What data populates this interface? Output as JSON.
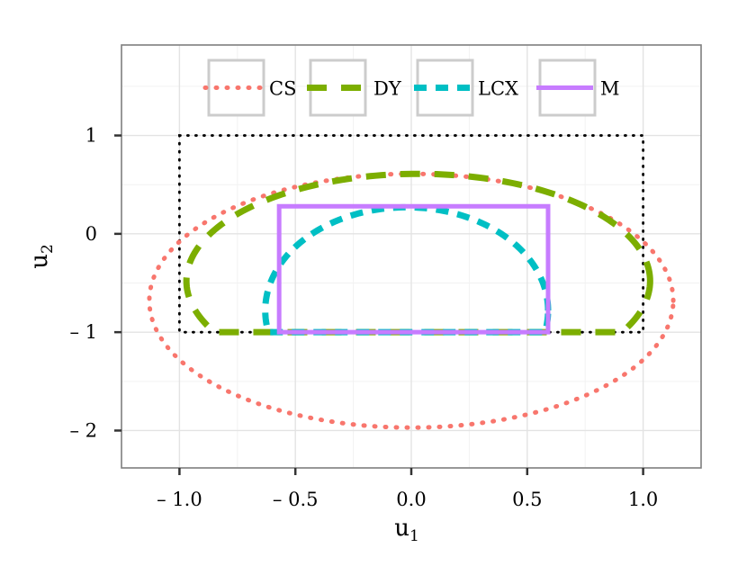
{
  "chart_data": {
    "type": "line",
    "xlabel": "u",
    "xlabel_sub": "1",
    "ylabel": "u",
    "ylabel_sub": "2",
    "xlim": [
      -1.25,
      1.25
    ],
    "ylim": [
      -2.38,
      1.92
    ],
    "x_ticks": [
      -1.0,
      -0.5,
      0.0,
      0.5,
      1.0
    ],
    "x_tick_labels": [
      "– 1.0",
      "– 0.5",
      "0.0",
      "0.5",
      "1.0"
    ],
    "y_ticks": [
      -2,
      -1,
      0,
      1
    ],
    "y_tick_labels": [
      "– 2",
      "– 1",
      "0",
      "1"
    ],
    "grid": true,
    "legend_position": "top",
    "legend": [
      {
        "key": "CS",
        "label": "CS"
      },
      {
        "key": "DY",
        "label": "DY"
      },
      {
        "key": "LCX",
        "label": "LCX"
      },
      {
        "key": "M",
        "label": "M"
      }
    ],
    "reference_box": {
      "x": [
        -1.0,
        1.0
      ],
      "y": [
        -1.0,
        1.0
      ],
      "style": "dotted",
      "color": "#000000"
    },
    "series": [
      {
        "name": "CS",
        "shape": "ellipse",
        "center": [
          0.0,
          -0.68
        ],
        "radius_x": 1.13,
        "radius_y": 1.29,
        "color": "#F8766D",
        "style": "dotted"
      },
      {
        "name": "DY",
        "shape": "capped-ellipse",
        "center": [
          0.03,
          -0.48
        ],
        "radius_x": 1.0,
        "radius_y": 1.09,
        "y_floor": -1.0,
        "color": "#7CAE00",
        "style": "longdash"
      },
      {
        "name": "LCX",
        "shape": "half-ellipse",
        "center": [
          -0.02,
          -0.78
        ],
        "radius_x": 0.61,
        "radius_y": 1.05,
        "y_floor": -1.0,
        "color": "#00BFC4",
        "style": "dashed"
      },
      {
        "name": "M",
        "shape": "rectangle",
        "x": [
          -0.57,
          0.59
        ],
        "y": [
          -1.0,
          0.28
        ],
        "color": "#C77CFF",
        "style": "solid"
      }
    ]
  }
}
